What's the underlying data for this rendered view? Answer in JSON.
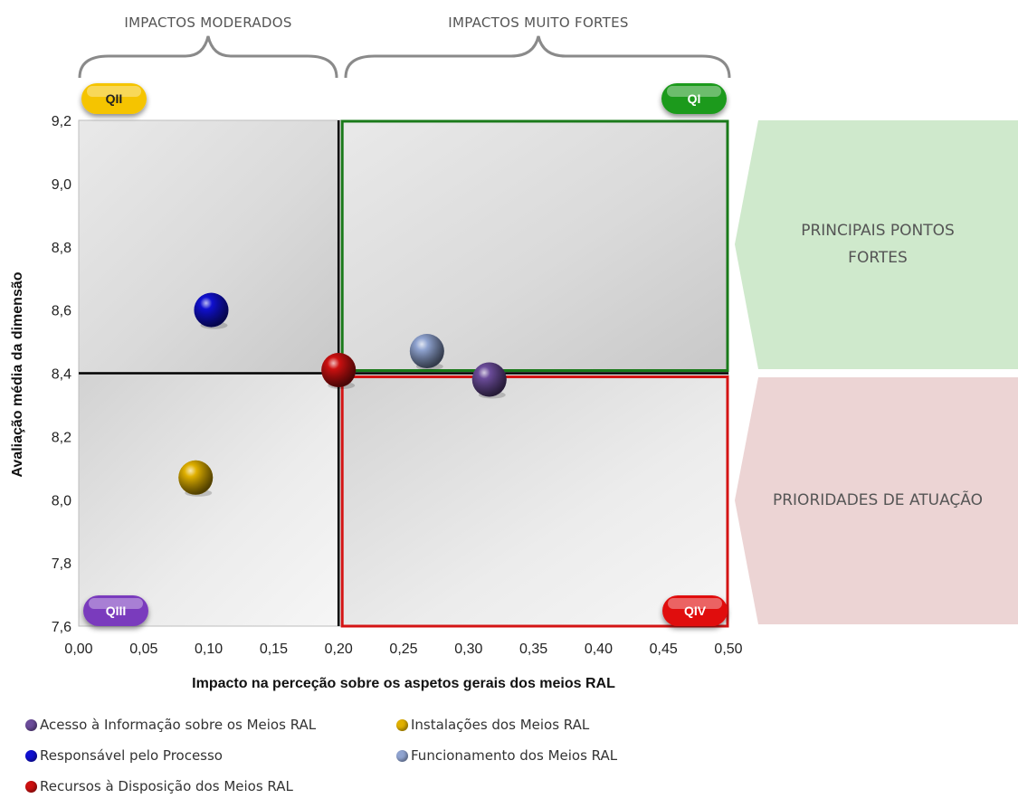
{
  "chart_data": {
    "type": "scatter",
    "xlabel": "Impacto na perceção sobre os aspetos gerais dos meios RAL",
    "ylabel": "Avaliação média da dimensão",
    "xlim": [
      0,
      0.5
    ],
    "ylim": [
      7.6,
      9.2
    ],
    "x_ticks": [
      "0,00",
      "0,05",
      "0,10",
      "0,15",
      "0,20",
      "0,25",
      "0,30",
      "0,35",
      "0,40",
      "0,45",
      "0,50"
    ],
    "y_ticks": [
      "7,6",
      "7,8",
      "8,0",
      "8,2",
      "8,4",
      "8,6",
      "8,8",
      "9,0",
      "9,2"
    ],
    "x_tick_values": [
      0,
      0.05,
      0.1,
      0.15,
      0.2,
      0.25,
      0.3,
      0.35,
      0.4,
      0.45,
      0.5
    ],
    "y_tick_values": [
      7.6,
      7.8,
      8.0,
      8.2,
      8.4,
      8.6,
      8.8,
      9.0,
      9.2
    ],
    "divider": {
      "x": 0.2,
      "y": 8.4
    },
    "grid": false,
    "legend_position": "bottom-left",
    "series": [
      {
        "name": "Acesso à Informação sobre os Meios RAL",
        "x": 0.316,
        "y": 8.38,
        "color": "#6b4c9a"
      },
      {
        "name": "Instalações dos Meios RAL",
        "x": 0.09,
        "y": 8.07,
        "color": "#e0b000"
      },
      {
        "name": "Responsável pelo Processo",
        "x": 0.102,
        "y": 8.6,
        "color": "#1010d0"
      },
      {
        "name": "Funcionamento dos Meios RAL",
        "x": 0.268,
        "y": 8.47,
        "color": "#8fa3d0"
      },
      {
        "name": "Recursos à Disposição dos Meios RAL",
        "x": 0.2,
        "y": 8.41,
        "color": "#cc1010"
      }
    ]
  },
  "top_labels": {
    "moderate": "IMPACTOS MODERADOS",
    "strong": "IMPACTOS MUITO FORTES"
  },
  "quadrants": {
    "q1": "QI",
    "q2": "QII",
    "q3": "QIII",
    "q4": "QIV"
  },
  "side_labels": {
    "strengths_line1": "PRINCIPAIS PONTOS",
    "strengths_line2": "FORTES",
    "priorities": "PRIORIDADES DE ATUAÇÃO"
  },
  "colors": {
    "q1": "#1e9a1e",
    "q2": "#f5c400",
    "q3": "#7a3bbd",
    "q4": "#e01010",
    "strengths_bg": "#cfe9cc",
    "priorities_bg": "#ecd4d4",
    "q1_border": "#1a7a1a",
    "q4_border": "#d41414"
  }
}
